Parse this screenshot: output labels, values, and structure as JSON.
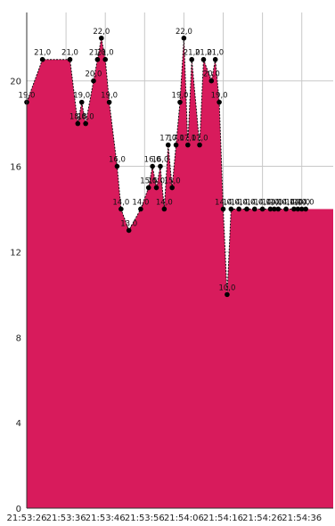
{
  "chart_data": {
    "type": "area",
    "title": "",
    "xlabel": "",
    "ylabel": "",
    "ylim": [
      0,
      23.2
    ],
    "yticks": [
      0,
      4,
      8,
      12,
      16,
      20
    ],
    "ytick_labels": [
      "0",
      "4",
      "8",
      "12",
      "16",
      "20"
    ],
    "xlim": [
      "21:53:26",
      "21:54:44"
    ],
    "xticks": [
      "21:53:26",
      "21:53:36",
      "21:53:46",
      "21:53:56",
      "21:54:06",
      "21:54:16",
      "21:54:26",
      "21:54:36"
    ],
    "xtick_labels": [
      "21:53:26",
      "21:53:36",
      "21:53:46",
      "21:53:56",
      "21:54:06",
      "21:54:16",
      "21:54:26",
      "21:54:36"
    ],
    "grid": true,
    "legend": false,
    "colors": {
      "fill": "#D81B5C",
      "line": "#111111",
      "point": "#000000",
      "grid": "#C8C8C8"
    },
    "series": [
      {
        "x": [
          "21:53:26",
          "21:53:30",
          "21:53:37",
          "21:53:39",
          "21:53:40",
          "21:53:41",
          "21:53:43",
          "21:53:44",
          "21:53:45",
          "21:53:46",
          "21:53:47",
          "21:53:49",
          "21:53:50",
          "21:53:52",
          "21:53:55",
          "21:53:57",
          "21:53:58",
          "21:53:59",
          "21:54:00",
          "21:54:01",
          "21:54:02",
          "21:54:03",
          "21:54:04",
          "21:54:05",
          "21:54:06",
          "21:54:07",
          "21:54:08",
          "21:54:10",
          "21:54:11",
          "21:54:13",
          "21:54:14",
          "21:54:15",
          "21:54:16",
          "21:54:17",
          "21:54:18",
          "21:54:20",
          "21:54:22",
          "21:54:24",
          "21:54:26",
          "21:54:28",
          "21:54:29",
          "21:54:30",
          "21:54:32",
          "21:54:34",
          "21:54:35",
          "21:54:36",
          "21:54:37"
        ],
        "values": [
          19,
          21,
          21,
          18,
          19,
          18,
          20,
          21,
          22,
          21,
          19,
          16,
          14,
          13,
          14,
          15,
          16,
          15,
          16,
          14,
          17,
          15,
          17,
          19,
          22,
          17,
          21,
          17,
          21,
          20,
          21,
          19,
          14,
          10,
          14,
          14,
          14,
          14,
          14,
          14,
          14,
          14,
          14,
          14,
          14,
          14,
          14
        ],
        "labels": [
          "19,0",
          "21,0",
          "21,0",
          "18,0",
          "19,0",
          "18,0",
          "20,0",
          "21,0",
          "22,0",
          "21,0",
          "19,0",
          "16,0",
          "14,0",
          "13,0",
          "14,0",
          "15,0",
          "16,0",
          "15,0",
          "16,0",
          "14,0",
          "17,0",
          "15,0",
          "17,0",
          "19,0",
          "22,0",
          "17,0",
          "21,0",
          "17,0",
          "21,0",
          "20,0",
          "21,0",
          "19,0",
          "14,0",
          "10,0",
          "14,0",
          "14,0",
          "14,0",
          "14,0",
          "14,0",
          "14,0",
          "14,0",
          "14,0",
          "14,0",
          "14,0",
          "14,0",
          "14,0",
          "14,0"
        ]
      }
    ]
  }
}
